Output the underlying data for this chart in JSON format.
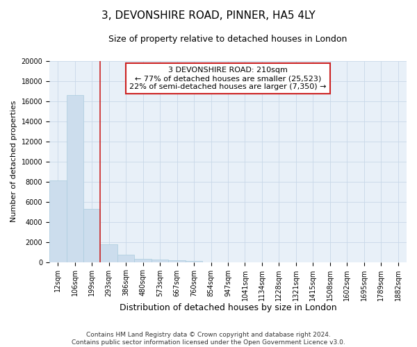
{
  "title": "3, DEVONSHIRE ROAD, PINNER, HA5 4LY",
  "subtitle": "Size of property relative to detached houses in London",
  "xlabel": "Distribution of detached houses by size in London",
  "ylabel": "Number of detached properties",
  "categories": [
    "12sqm",
    "106sqm",
    "199sqm",
    "293sqm",
    "386sqm",
    "480sqm",
    "573sqm",
    "667sqm",
    "760sqm",
    "854sqm",
    "947sqm",
    "1041sqm",
    "1134sqm",
    "1228sqm",
    "1321sqm",
    "1415sqm",
    "1508sqm",
    "1602sqm",
    "1695sqm",
    "1789sqm",
    "1882sqm"
  ],
  "values": [
    8100,
    16600,
    5300,
    1800,
    750,
    300,
    220,
    160,
    130,
    0,
    0,
    0,
    0,
    0,
    0,
    0,
    0,
    0,
    0,
    0,
    0
  ],
  "bar_color": "#ccdded",
  "bar_edge_color": "#aaccdd",
  "vline_color": "#cc2222",
  "vline_xindex": 2.5,
  "annotation_text": "3 DEVONSHIRE ROAD: 210sqm\n← 77% of detached houses are smaller (25,523)\n22% of semi-detached houses are larger (7,350) →",
  "ylim": [
    0,
    20000
  ],
  "yticks": [
    0,
    2000,
    4000,
    6000,
    8000,
    10000,
    12000,
    14000,
    16000,
    18000,
    20000
  ],
  "grid_color": "#c8d8e8",
  "bg_color": "#e8f0f8",
  "footer": "Contains HM Land Registry data © Crown copyright and database right 2024.\nContains public sector information licensed under the Open Government Licence v3.0.",
  "title_fontsize": 11,
  "subtitle_fontsize": 9,
  "tick_fontsize": 7,
  "ylabel_fontsize": 8,
  "xlabel_fontsize": 9,
  "annot_fontsize": 8,
  "footer_fontsize": 6.5
}
